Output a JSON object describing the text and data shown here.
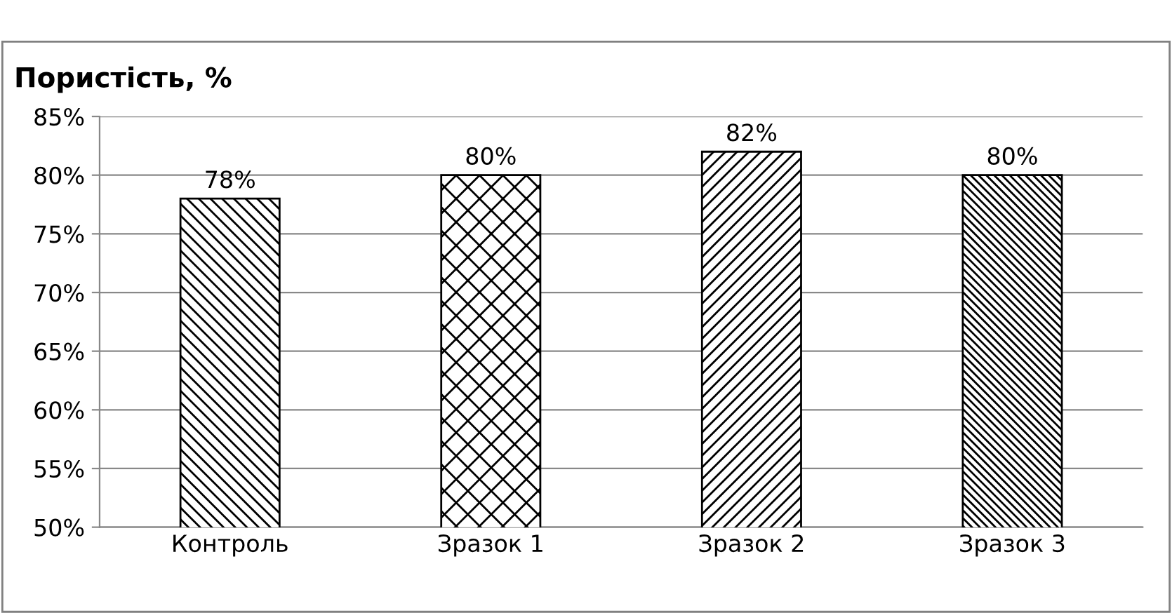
{
  "chart_data": {
    "type": "bar",
    "title": "Пористість, %",
    "categories": [
      "Контроль",
      "Зразок 1",
      "Зразок 2",
      "Зразок 3"
    ],
    "values": [
      78,
      80,
      82,
      80
    ],
    "value_labels": [
      "78%",
      "80%",
      "82%",
      "80%"
    ],
    "color": "#000000",
    "ylim": [
      50,
      85
    ],
    "yticks": [
      {
        "value": 50,
        "label": "50%"
      },
      {
        "value": 55,
        "label": "55%"
      },
      {
        "value": 60,
        "label": "60%"
      },
      {
        "value": 65,
        "label": "65%"
      },
      {
        "value": 70,
        "label": "70%"
      },
      {
        "value": 75,
        "label": "75%"
      },
      {
        "value": 80,
        "label": "80%"
      },
      {
        "value": 85,
        "label": "85%"
      }
    ],
    "grid": "y",
    "legend": false
  }
}
